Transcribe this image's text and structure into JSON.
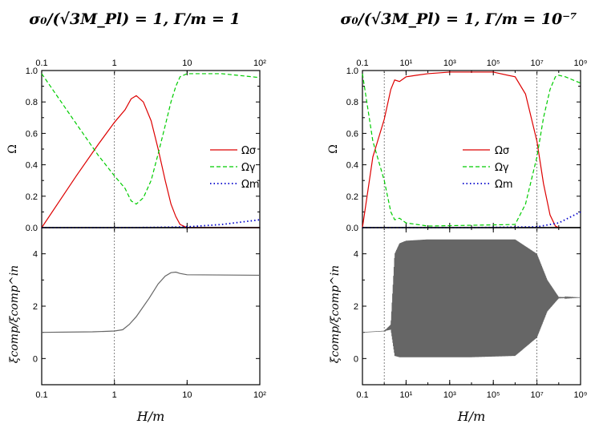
{
  "figure": {
    "left_title": "σ₀/(√3M_Pl) = 1,  Γ/m = 1",
    "right_title": "σ₀/(√3M_Pl) = 1,  Γ/m = 10⁻⁷",
    "upper_ylabel": "Ω",
    "lower_ylabel": "ξcomp/ξcomp^in",
    "xlabel": "H/m",
    "legend": [
      "Ωσ",
      "Ωγ",
      "Ωm"
    ],
    "colors": {
      "sigma": "#dd0000",
      "gamma": "#00cc00",
      "matter": "#0000cc",
      "xi": "#666666",
      "vline": "#666666"
    }
  },
  "chart_data": [
    {
      "panel": "left-upper",
      "type": "line",
      "xscale": "log",
      "xlim": [
        0.1,
        100
      ],
      "ylim": [
        0,
        1
      ],
      "xticks_top": [
        "0.1",
        "1",
        "10",
        "10²"
      ],
      "yticks": [
        "0.0",
        "0.2",
        "0.4",
        "0.6",
        "0.8",
        "1.0"
      ],
      "ylabel": "Ω",
      "vlines": [
        1
      ],
      "series": [
        {
          "name": "Ωσ",
          "style": "solid",
          "x": [
            0.1,
            0.3,
            0.6,
            1.0,
            1.4,
            1.7,
            2.0,
            2.5,
            3.2,
            4.0,
            5.0,
            6.0,
            7.0,
            8.0,
            10.0,
            12.0,
            100.0
          ],
          "y": [
            0.0,
            0.33,
            0.53,
            0.67,
            0.75,
            0.82,
            0.84,
            0.8,
            0.68,
            0.5,
            0.3,
            0.15,
            0.07,
            0.02,
            0.0,
            0.0,
            0.0
          ]
        },
        {
          "name": "Ωγ",
          "style": "dashed",
          "x": [
            0.1,
            0.3,
            0.6,
            1.0,
            1.4,
            1.7,
            2.0,
            2.5,
            3.2,
            4.0,
            5.0,
            6.0,
            7.0,
            8.0,
            10.0,
            12.0,
            30.0,
            100.0
          ],
          "y": [
            0.98,
            0.66,
            0.46,
            0.33,
            0.25,
            0.17,
            0.15,
            0.19,
            0.3,
            0.47,
            0.65,
            0.8,
            0.9,
            0.96,
            0.98,
            0.98,
            0.98,
            0.955
          ]
        },
        {
          "name": "Ωm",
          "style": "dotted",
          "x": [
            0.1,
            1.0,
            3.0,
            10.0,
            30.0,
            100.0
          ],
          "y": [
            0.0,
            0.0,
            0.001,
            0.005,
            0.02,
            0.05
          ]
        }
      ]
    },
    {
      "panel": "left-lower",
      "type": "line",
      "xscale": "log",
      "xlim": [
        0.1,
        100
      ],
      "ylim": [
        -1,
        5
      ],
      "xticks": [
        "0.1",
        "1",
        "10",
        "10²"
      ],
      "yticks": [
        "0",
        "2",
        "4"
      ],
      "xlabel": "H/m",
      "vlines": [
        1
      ],
      "series": [
        {
          "style": "solid",
          "x": [
            0.1,
            0.5,
            1.0,
            1.3,
            1.6,
            2.0,
            3.0,
            4.0,
            5.0,
            6.0,
            7.0,
            8.0,
            10.0,
            100.0
          ],
          "y": [
            1.0,
            1.02,
            1.05,
            1.1,
            1.3,
            1.6,
            2.3,
            2.85,
            3.15,
            3.28,
            3.3,
            3.25,
            3.2,
            3.18
          ]
        }
      ]
    },
    {
      "panel": "right-upper",
      "type": "line",
      "xscale": "log",
      "xlim": [
        0.1,
        1000000000
      ],
      "ylim": [
        0,
        1
      ],
      "xticks_top": [
        "0.1",
        "10¹",
        "10³",
        "10⁵",
        "10⁷",
        "10⁹"
      ],
      "yticks": [
        "0.0",
        "0.2",
        "0.4",
        "0.6",
        "0.8",
        "1.0"
      ],
      "ylabel": "Ω",
      "vlines": [
        1,
        10000000
      ],
      "series": [
        {
          "name": "Ωσ",
          "style": "solid",
          "x": [
            0.1,
            0.3,
            1.0,
            2.0,
            3.0,
            5.0,
            10.0,
            30.0,
            100.0,
            1000.0,
            100000.0,
            1000000.0,
            3000000.0,
            10000000.0,
            20000000.0,
            40000000.0,
            70000000.0,
            100000000.0
          ],
          "y": [
            0.0,
            0.45,
            0.69,
            0.88,
            0.94,
            0.93,
            0.96,
            0.97,
            0.98,
            0.99,
            0.99,
            0.96,
            0.85,
            0.55,
            0.28,
            0.08,
            0.01,
            0.0
          ]
        },
        {
          "name": "Ωγ",
          "style": "dashed",
          "x": [
            0.1,
            0.3,
            1.0,
            2.0,
            3.0,
            5.0,
            10.0,
            100.0,
            1000000.0,
            3000000.0,
            10000000.0,
            20000000.0,
            40000000.0,
            70000000.0,
            100000000.0,
            200000000.0,
            1000000000.0
          ],
          "y": [
            0.98,
            0.55,
            0.3,
            0.1,
            0.05,
            0.06,
            0.03,
            0.01,
            0.02,
            0.15,
            0.45,
            0.7,
            0.88,
            0.96,
            0.97,
            0.96,
            0.92
          ]
        },
        {
          "name": "Ωm",
          "style": "dotted",
          "x": [
            0.1,
            10000.0,
            10000000.0,
            100000000.0,
            1000000000.0
          ],
          "y": [
            0.0,
            0.0,
            0.005,
            0.03,
            0.1
          ]
        }
      ]
    },
    {
      "panel": "right-lower",
      "type": "line",
      "xscale": "log",
      "xlim": [
        0.1,
        1000000000
      ],
      "ylim": [
        -1,
        5
      ],
      "xticks": [
        "0.1",
        "10¹",
        "10³",
        "10⁵",
        "10⁷",
        "10⁹"
      ],
      "yticks": [
        "0",
        "2",
        "4"
      ],
      "xlabel": "H/m",
      "vlines": [
        1,
        10000000
      ],
      "series": [
        {
          "style": "oscillating envelope",
          "x": [
            0.1,
            1.0,
            2.0,
            3.0,
            5.0,
            10.0,
            100.0,
            10000.0,
            1000000.0,
            10000000.0,
            30000000.0,
            100000000.0,
            1000000000.0
          ],
          "upper": [
            1.0,
            1.05,
            1.3,
            4.0,
            4.4,
            4.5,
            4.55,
            4.55,
            4.55,
            4.0,
            3.0,
            2.35,
            2.33
          ],
          "lower": [
            1.0,
            1.05,
            1.1,
            0.1,
            0.05,
            0.05,
            0.05,
            0.05,
            0.1,
            0.8,
            1.8,
            2.3,
            2.33
          ]
        }
      ]
    }
  ]
}
